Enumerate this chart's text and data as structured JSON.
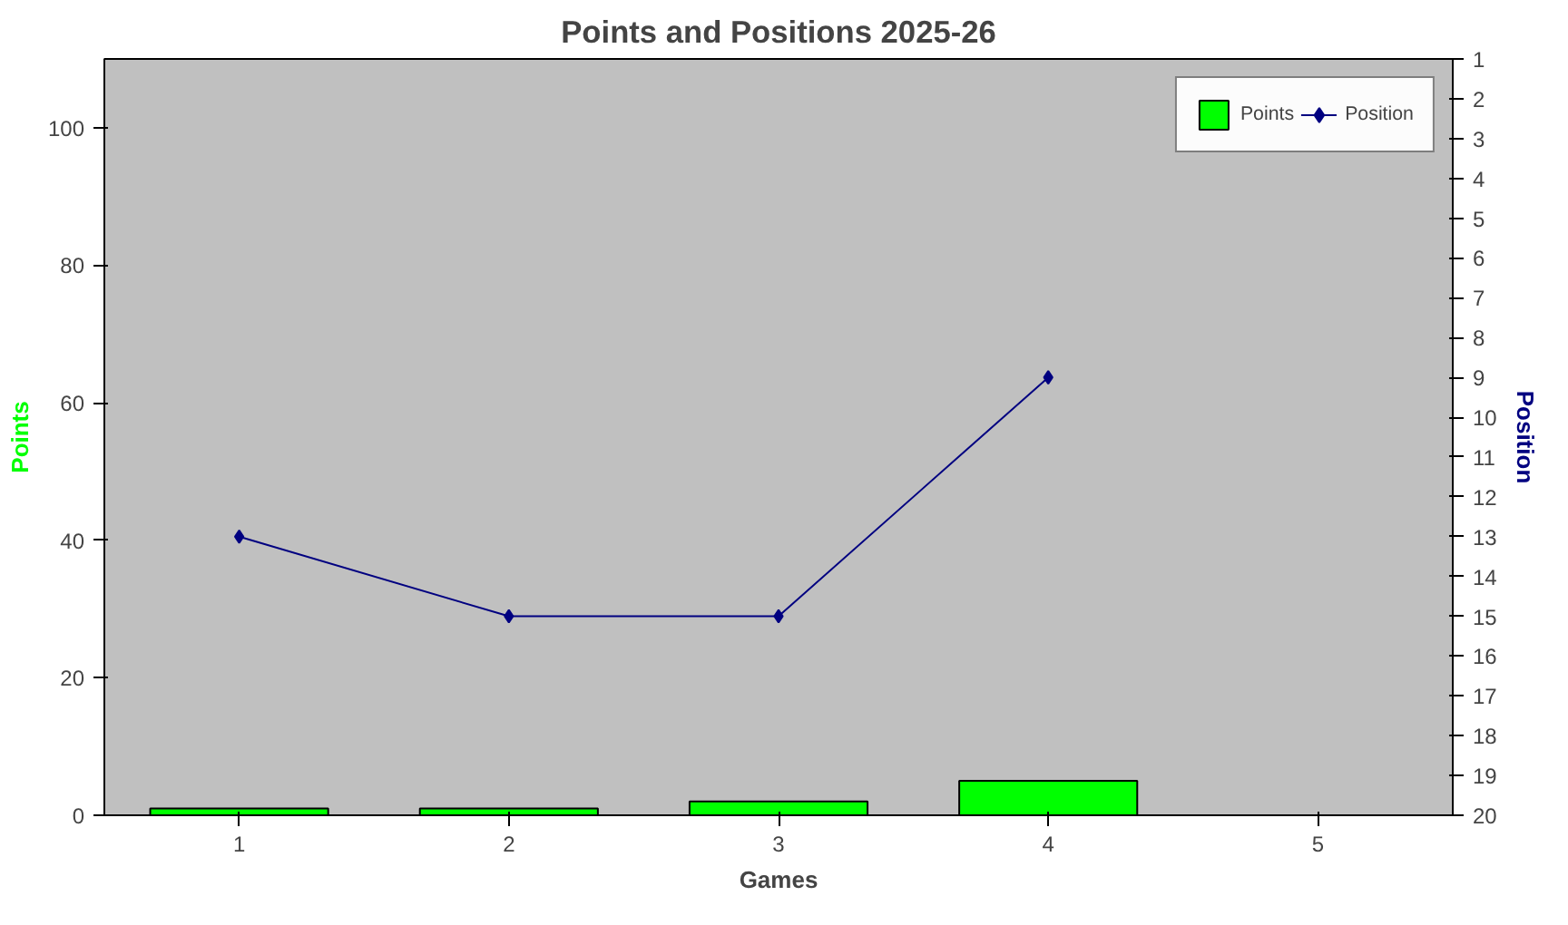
{
  "chart_data": {
    "type": "bar",
    "title": "Points and Positions 2025-26",
    "xlabel": "Games",
    "ylabel": "Points",
    "y2label": "Position",
    "categories": [
      "1",
      "2",
      "3",
      "4",
      "5"
    ],
    "series": [
      {
        "name": "Points",
        "color": "#00ff00",
        "values": [
          1,
          1,
          2,
          5,
          null
        ]
      },
      {
        "name": "Position",
        "type": "line",
        "axis": "y2",
        "color": "#000080",
        "marker": "diamond",
        "values": [
          13,
          15,
          15,
          9,
          null
        ]
      }
    ],
    "ylim": [
      0,
      110
    ],
    "yticks": [
      0,
      20,
      40,
      60,
      80,
      100
    ],
    "y2lim": [
      20,
      1
    ],
    "y2ticks": [
      1,
      2,
      3,
      4,
      5,
      6,
      7,
      8,
      9,
      10,
      11,
      12,
      13,
      14,
      15,
      16,
      17,
      18,
      19,
      20
    ],
    "grid": false,
    "legend": "top"
  }
}
